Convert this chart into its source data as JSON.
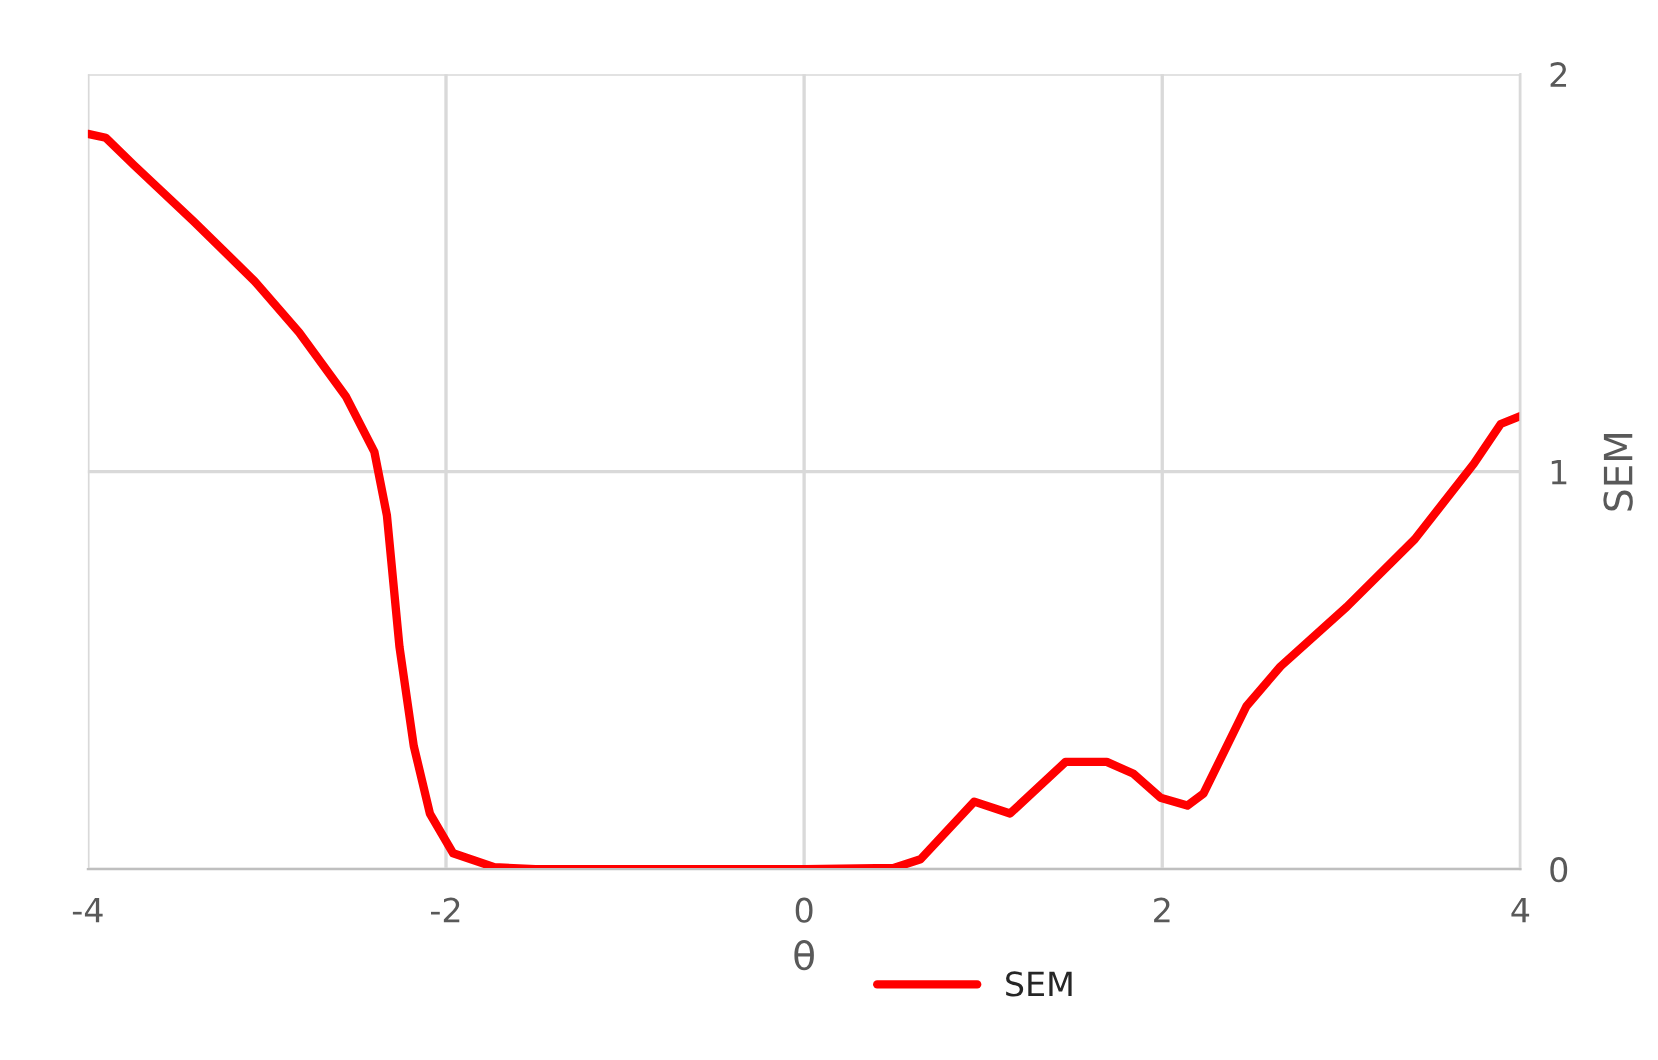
{
  "chart_data": {
    "type": "line",
    "xlabel": "θ",
    "ylabel": "SEM",
    "xlim": [
      -4,
      4
    ],
    "ylim": [
      0,
      2
    ],
    "xticks": [
      -4,
      -2,
      0,
      2,
      4
    ],
    "yticks": [
      0,
      1,
      2
    ],
    "grid": true,
    "legend": "bottom",
    "series": [
      {
        "name": "SEM",
        "color": "#ff0000",
        "x": [
          -4.0,
          -3.9,
          -3.74,
          -3.41,
          -3.07,
          -2.82,
          -2.56,
          -2.4,
          -2.33,
          -2.26,
          -2.18,
          -2.09,
          -1.96,
          -1.73,
          -1.5,
          -1.0,
          -0.5,
          0.0,
          0.5,
          0.65,
          0.95,
          1.15,
          1.46,
          1.69,
          1.84,
          1.99,
          2.14,
          2.23,
          2.47,
          2.66,
          3.03,
          3.41,
          3.74,
          3.89,
          4.0
        ],
        "values": [
          1.85,
          1.84,
          1.77,
          1.63,
          1.48,
          1.35,
          1.19,
          1.05,
          0.89,
          0.56,
          0.31,
          0.14,
          0.04,
          0.005,
          0,
          0,
          0,
          0,
          0.003,
          0.025,
          0.17,
          0.14,
          0.27,
          0.27,
          0.24,
          0.18,
          0.16,
          0.19,
          0.41,
          0.51,
          0.66,
          0.83,
          1.02,
          1.12,
          1.14
        ]
      }
    ]
  }
}
